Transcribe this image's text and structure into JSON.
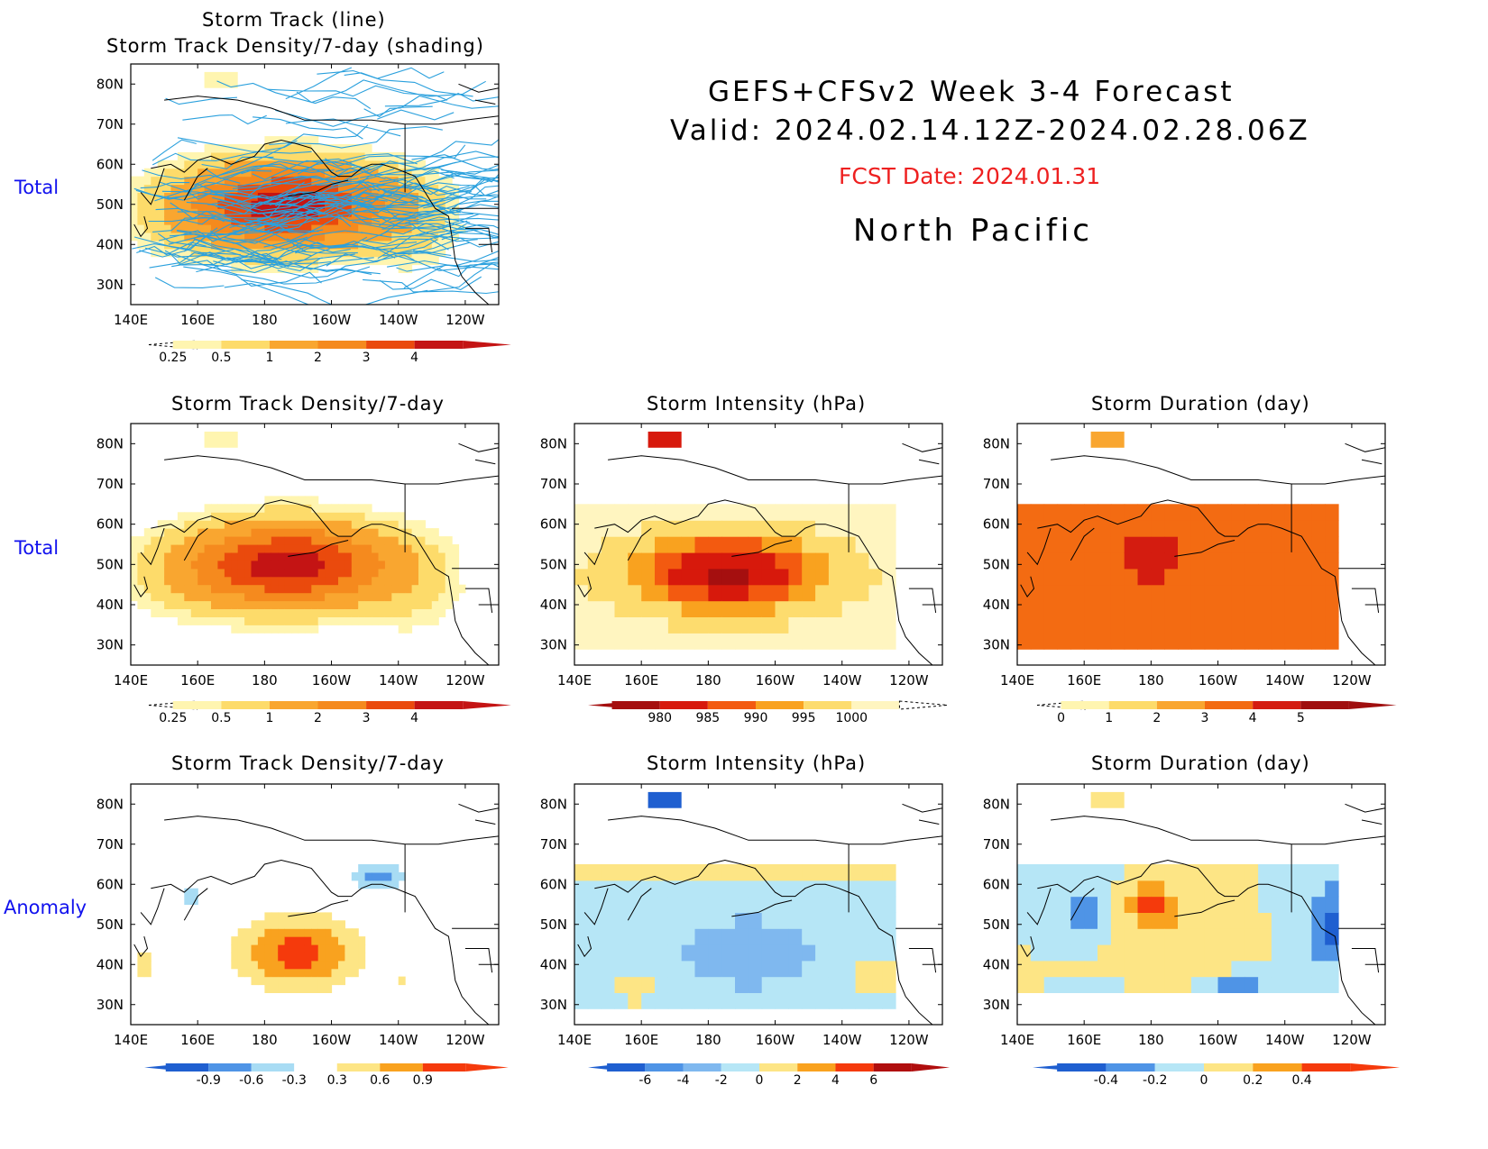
{
  "header": {
    "line1": "GEFS+CFSv2 Week 3-4 Forecast",
    "line2": "Valid: 2024.02.14.12Z-2024.02.28.06Z",
    "fcst": "FCST Date: 2024.01.31",
    "region": "North Pacific",
    "fcst_color": "#ee2020"
  },
  "rows": {
    "total": "Total",
    "anomaly": "Anomaly"
  },
  "chart_data": [
    {
      "id": "tracks",
      "type": "heatmap",
      "title": [
        "Storm Track (line)",
        "Storm Track Density/7-day (shading)"
      ],
      "overlay": "storm track lines",
      "overlay_color": "#2aa0dd",
      "x_ticks": [
        "140E",
        "160E",
        "180",
        "160W",
        "140W",
        "120W"
      ],
      "y_ticks": [
        "80N",
        "70N",
        "60N",
        "50N",
        "40N",
        "30N"
      ],
      "xlim": [
        140,
        250
      ],
      "ylim": [
        25,
        85
      ],
      "field": "density",
      "colorbar": {
        "labels": [
          "0.25",
          "0.5",
          "1",
          "2",
          "3",
          "4"
        ],
        "colors": [
          "#fff5b0",
          "#fddb6a",
          "#f9a630",
          "#f58a1e",
          "#ea4a0d",
          "#c41414"
        ],
        "extend": "both"
      }
    },
    {
      "id": "density-total",
      "type": "heatmap",
      "title": "Storm Track Density/7-day",
      "x_ticks": [
        "140E",
        "160E",
        "180",
        "160W",
        "140W",
        "120W"
      ],
      "y_ticks": [
        "80N",
        "70N",
        "60N",
        "50N",
        "40N",
        "30N"
      ],
      "xlim": [
        140,
        250
      ],
      "ylim": [
        25,
        85
      ],
      "field": "density",
      "colorbar": {
        "labels": [
          "0.25",
          "0.5",
          "1",
          "2",
          "3",
          "4"
        ],
        "colors": [
          "#fff5b0",
          "#fddb6a",
          "#f9a630",
          "#f58a1e",
          "#ea4a0d",
          "#c41414"
        ],
        "extend": "both"
      }
    },
    {
      "id": "intensity-total",
      "type": "heatmap",
      "title": "Storm Intensity (hPa)",
      "x_ticks": [
        "140E",
        "160E",
        "180",
        "160W",
        "140W",
        "120W"
      ],
      "y_ticks": [
        "80N",
        "70N",
        "60N",
        "50N",
        "40N",
        "30N"
      ],
      "xlim": [
        140,
        250
      ],
      "ylim": [
        25,
        85
      ],
      "field": "intensity",
      "colorbar": {
        "labels": [
          "980",
          "985",
          "990",
          "995",
          "1000"
        ],
        "colors": [
          "#a50f0f",
          "#d7190c",
          "#f35a10",
          "#f9a21f",
          "#fddc6e",
          "#fff5c0"
        ],
        "extend": "both"
      }
    },
    {
      "id": "duration-total",
      "type": "heatmap",
      "title": "Storm Duration (day)",
      "x_ticks": [
        "140E",
        "160E",
        "180",
        "160W",
        "140W",
        "120W"
      ],
      "y_ticks": [
        "80N",
        "70N",
        "60N",
        "50N",
        "40N",
        "30N"
      ],
      "xlim": [
        140,
        250
      ],
      "ylim": [
        25,
        85
      ],
      "field": "duration",
      "colorbar": {
        "labels": [
          "0",
          "1",
          "2",
          "3",
          "4",
          "5"
        ],
        "colors": [
          "#fff5b0",
          "#fddb6a",
          "#f9a630",
          "#f36b12",
          "#d41c10",
          "#a00f0f"
        ],
        "extend": "both"
      }
    },
    {
      "id": "density-anom",
      "type": "heatmap",
      "title": "Storm Track Density/7-day",
      "x_ticks": [
        "140E",
        "160E",
        "180",
        "160W",
        "140W",
        "120W"
      ],
      "y_ticks": [
        "80N",
        "70N",
        "60N",
        "50N",
        "40N",
        "30N"
      ],
      "xlim": [
        140,
        250
      ],
      "ylim": [
        25,
        85
      ],
      "field": "density_anom",
      "colorbar": {
        "labels": [
          "-0.9",
          "-0.6",
          "-0.3",
          "0.3",
          "0.6",
          "0.9"
        ],
        "colors": [
          "#1f5fd0",
          "#4f94e6",
          "#a8dcf4",
          "#ffffff",
          "#fde585",
          "#f9a21f",
          "#f53a0c"
        ],
        "extend": "both"
      }
    },
    {
      "id": "intensity-anom",
      "type": "heatmap",
      "title": "Storm Intensity (hPa)",
      "x_ticks": [
        "140E",
        "160E",
        "180",
        "160W",
        "140W",
        "120W"
      ],
      "y_ticks": [
        "80N",
        "70N",
        "60N",
        "50N",
        "40N",
        "30N"
      ],
      "xlim": [
        140,
        250
      ],
      "ylim": [
        25,
        85
      ],
      "field": "intensity_anom",
      "colorbar": {
        "labels": [
          "-6",
          "-4",
          "-2",
          "0",
          "2",
          "4",
          "6"
        ],
        "colors": [
          "#1f5fd0",
          "#4f94e6",
          "#7fb8ef",
          "#b6e6f6",
          "#fde585",
          "#f9a21f",
          "#f53a0c",
          "#b00e0e"
        ],
        "extend": "both"
      }
    },
    {
      "id": "duration-anom",
      "type": "heatmap",
      "title": "Storm Duration (day)",
      "x_ticks": [
        "140E",
        "160E",
        "180",
        "160W",
        "140W",
        "120W"
      ],
      "y_ticks": [
        "80N",
        "70N",
        "60N",
        "50N",
        "40N",
        "30N"
      ],
      "xlim": [
        140,
        250
      ],
      "ylim": [
        25,
        85
      ],
      "field": "duration_anom",
      "colorbar": {
        "labels": [
          "-0.4",
          "-0.2",
          "0",
          "0.2",
          "0.4"
        ],
        "colors": [
          "#1f5fd0",
          "#4f94e6",
          "#b6e6f6",
          "#fde585",
          "#f9a21f",
          "#f53a0c"
        ],
        "extend": "both"
      }
    }
  ]
}
